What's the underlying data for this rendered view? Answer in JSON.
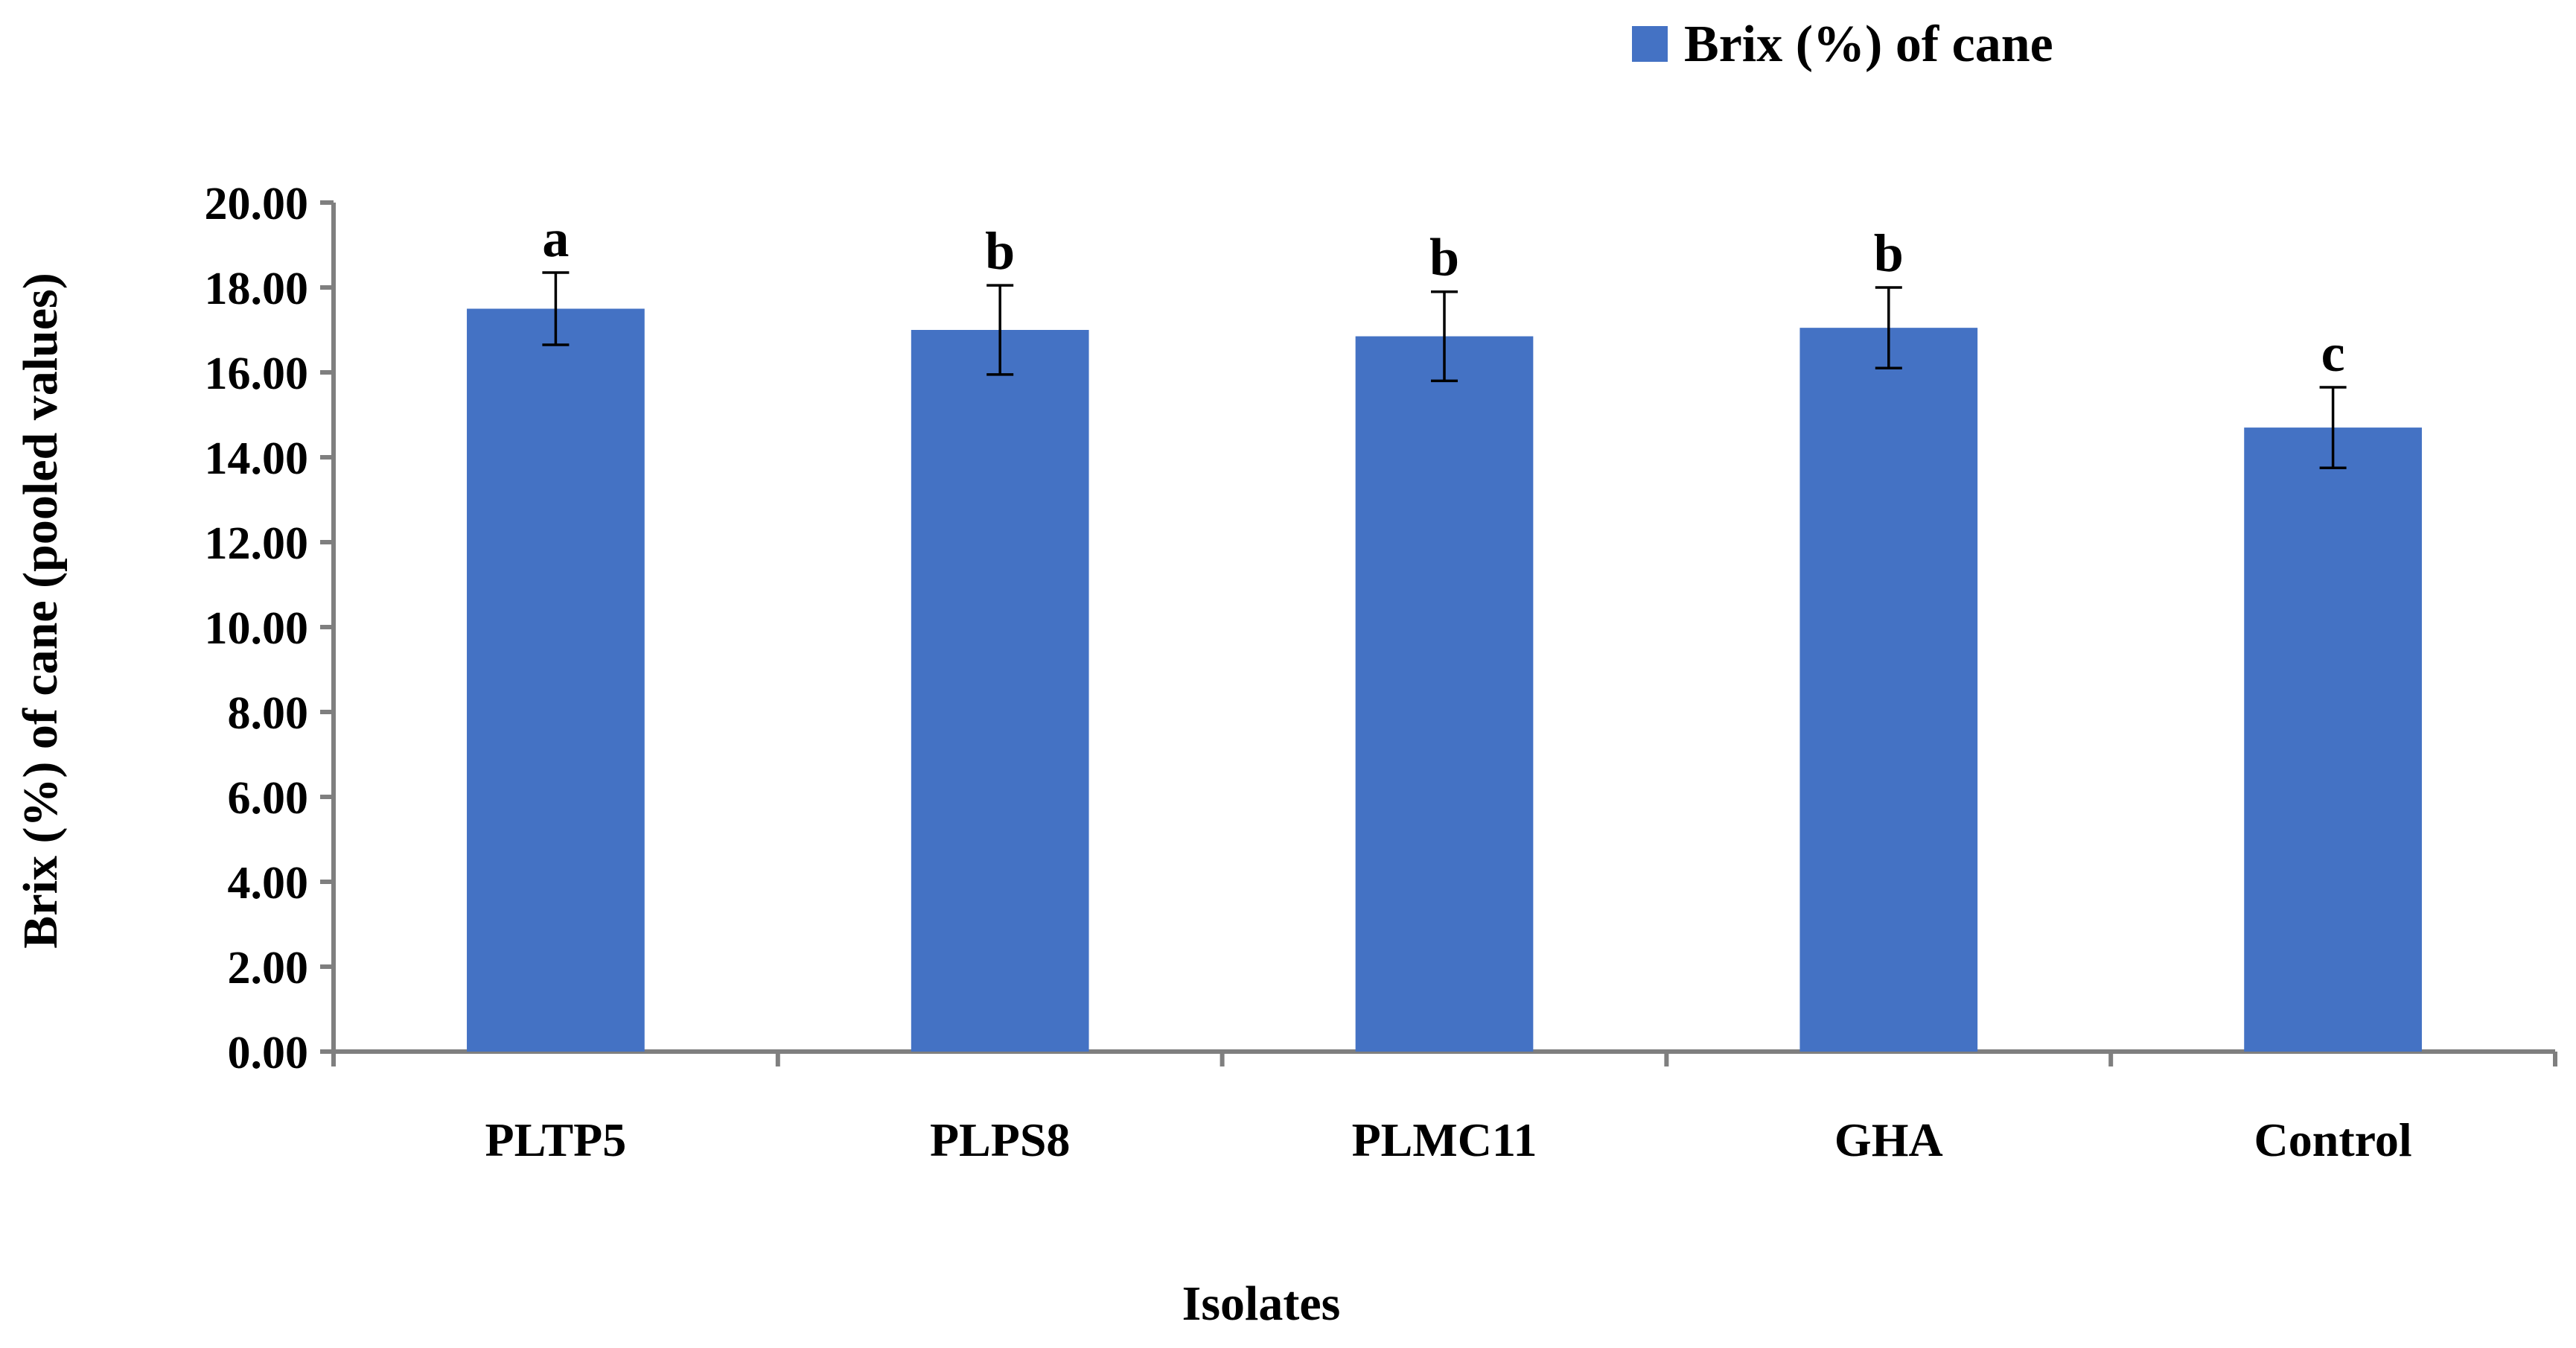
{
  "chart_data": {
    "type": "bar",
    "title": "",
    "xlabel": "Isolates",
    "ylabel": "Brix (%) of cane (pooled values)",
    "ylim": [
      0,
      20
    ],
    "ytick_step": 2,
    "ytick_labels": [
      "0.00",
      "2.00",
      "4.00",
      "6.00",
      "8.00",
      "10.00",
      "12.00",
      "14.00",
      "16.00",
      "18.00",
      "20.00"
    ],
    "categories": [
      "PLTP5",
      "PLPS8",
      "PLMC11",
      "GHA",
      "Control"
    ],
    "series": [
      {
        "name": "Brix (%) of cane",
        "values": [
          17.5,
          17.0,
          16.85,
          17.05,
          14.7
        ],
        "errors": [
          0.85,
          1.05,
          1.05,
          0.95,
          0.95
        ],
        "significance": [
          "a",
          "b",
          "b",
          "b",
          "c"
        ]
      }
    ],
    "legend_position": "top-right",
    "grid": false,
    "bar_color": "#4472C4",
    "axis_color": "#7F7F7F"
  }
}
